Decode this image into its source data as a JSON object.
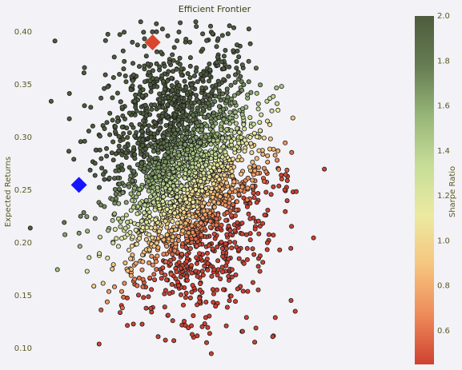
{
  "chart_data": {
    "type": "scatter",
    "title": "Efficient Frontier",
    "xlabel": "",
    "ylabel": "Expected Returns",
    "ylim": [
      0.085,
      0.415
    ],
    "xlim": [
      0.0,
      1.0
    ],
    "y_ticks": [
      "0.10",
      "0.15",
      "0.20",
      "0.25",
      "0.30",
      "0.35",
      "0.40"
    ],
    "y_tick_values": [
      0.1,
      0.15,
      0.2,
      0.25,
      0.3,
      0.35,
      0.4
    ],
    "x_ticks_visible": false,
    "grid": false,
    "colorbar": {
      "label": "Sharpe Ratio",
      "range": [
        0.45,
        2.0
      ],
      "ticks": [
        "0.6",
        "0.8",
        "1.0",
        "1.2",
        "1.4",
        "1.6",
        "1.8",
        "2.0"
      ],
      "tick_values": [
        0.6,
        0.8,
        1.0,
        1.2,
        1.4,
        1.6,
        1.8,
        2.0
      ],
      "colors": [
        "#cf4130",
        "#ee8b5a",
        "#f6c57e",
        "#eceaa2",
        "#c6dd97",
        "#97b577",
        "#667c52",
        "#4d5c3d"
      ]
    },
    "markers": [
      {
        "name": "max-sharpe",
        "x": 0.31,
        "y": 0.39,
        "color": "#d9472f",
        "shape": "diamond"
      },
      {
        "name": "min-volatility",
        "x": 0.11,
        "y": 0.255,
        "color": "#1414ff",
        "shape": "diamond"
      }
    ],
    "cloud": {
      "center_x": 0.4,
      "center_y": 0.265,
      "spread_x": 0.105,
      "spread_y": 0.06,
      "count": 2600,
      "sharpe_model": "increases with return, decreases with risk"
    }
  }
}
